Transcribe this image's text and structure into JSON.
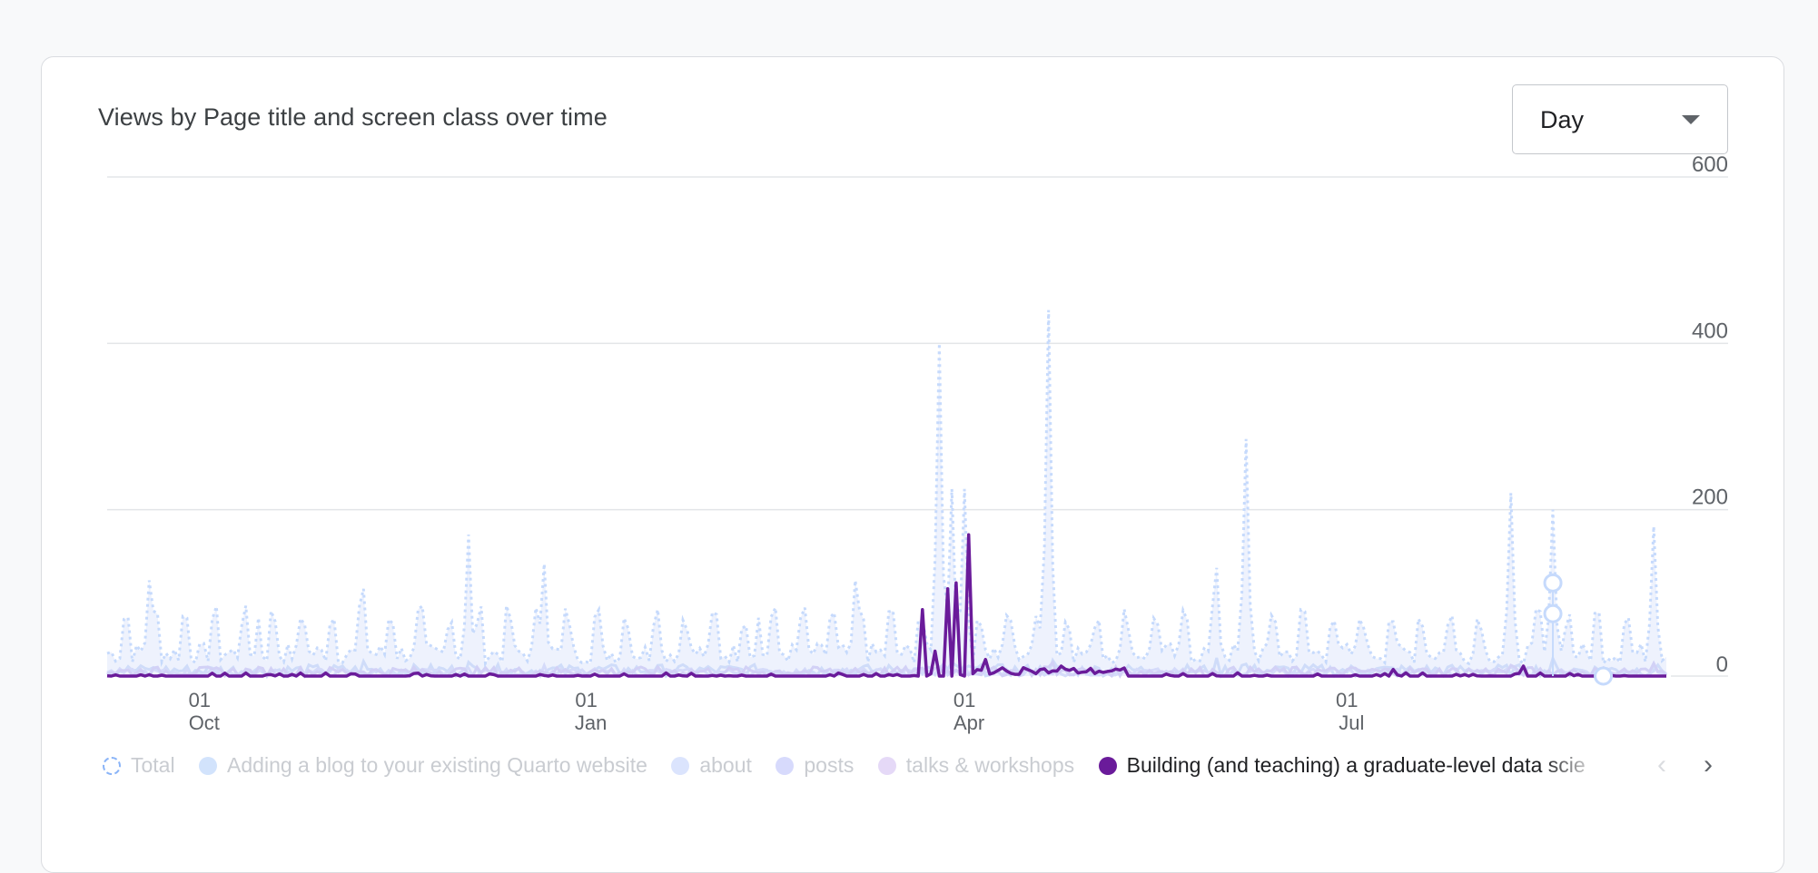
{
  "card": {
    "title": "Views by Page title and screen class over time"
  },
  "granularity": {
    "selected": "Day"
  },
  "legend": {
    "items": [
      {
        "label": "Total",
        "color": "#c6dafc",
        "state": "off",
        "style": "dashed"
      },
      {
        "label": "Adding a blog to your existing Quarto website",
        "color": "#d2e3fc",
        "state": "off"
      },
      {
        "label": "about",
        "color": "#dbe4fd",
        "state": "off"
      },
      {
        "label": "posts",
        "color": "#d7dafc",
        "state": "off"
      },
      {
        "label": "talks & workshops",
        "color": "#e5d9f7",
        "state": "off"
      },
      {
        "label": "Building (and teaching) a graduate-level data scie",
        "color": "#6a1b9a",
        "state": "on"
      }
    ],
    "prev_icon": "chevron-left-icon",
    "next_icon": "chevron-right-icon",
    "prev_symbol": "‹",
    "next_symbol": "›"
  },
  "chart_data": {
    "type": "line",
    "x_axis": {
      "start": "2022-09-09",
      "end": "2023-09-15",
      "ticks": [
        {
          "date": "2022-10-01",
          "day": "01",
          "month": "Oct"
        },
        {
          "date": "2023-01-01",
          "day": "01",
          "month": "Jan"
        },
        {
          "date": "2023-04-01",
          "day": "01",
          "month": "Apr"
        },
        {
          "date": "2023-07-01",
          "day": "01",
          "month": "Jul"
        }
      ]
    },
    "y_axis": {
      "ticks": [
        0,
        200,
        400,
        600
      ],
      "ylim": [
        0,
        600
      ],
      "position": "right"
    },
    "grid": true,
    "series": [
      {
        "name": "Total",
        "style": "dotted",
        "color": "#c6dafc",
        "peaks": [
          {
            "date": "2022-09-19",
            "value": 115
          },
          {
            "date": "2022-10-15",
            "value": 70
          },
          {
            "date": "2022-11-09",
            "value": 105
          },
          {
            "date": "2022-12-04",
            "value": 170
          },
          {
            "date": "2022-12-22",
            "value": 135
          },
          {
            "date": "2023-01-18",
            "value": 80
          },
          {
            "date": "2023-02-11",
            "value": 70
          },
          {
            "date": "2023-03-06",
            "value": 115
          },
          {
            "date": "2023-03-26",
            "value": 400
          },
          {
            "date": "2023-03-29",
            "value": 225
          },
          {
            "date": "2023-04-01",
            "value": 225
          },
          {
            "date": "2023-04-21",
            "value": 440
          },
          {
            "date": "2023-05-31",
            "value": 130
          },
          {
            "date": "2023-06-07",
            "value": 285
          },
          {
            "date": "2023-08-09",
            "value": 220
          },
          {
            "date": "2023-08-19",
            "value": 200
          },
          {
            "date": "2023-09-12",
            "value": 180
          }
        ]
      },
      {
        "name": "Building (and teaching) a graduate-level data scie",
        "style": "solid",
        "color": "#6a1b9a",
        "peaks": [
          {
            "date": "2023-03-22",
            "value": 80
          },
          {
            "date": "2023-03-25",
            "value": 30
          },
          {
            "date": "2023-03-28",
            "value": 105
          },
          {
            "date": "2023-03-30",
            "value": 112
          },
          {
            "date": "2023-04-02",
            "value": 170
          },
          {
            "date": "2023-04-06",
            "value": 20
          },
          {
            "date": "2023-04-15",
            "value": 10
          },
          {
            "date": "2023-04-24",
            "value": 12
          },
          {
            "date": "2023-07-12",
            "value": 8
          },
          {
            "date": "2023-08-12",
            "value": 12
          }
        ]
      }
    ],
    "hover_markers": [
      {
        "date": "2023-08-19",
        "value": 112
      },
      {
        "date": "2023-08-19",
        "value": 75
      },
      {
        "date": "2023-08-31",
        "value": 0
      }
    ]
  }
}
